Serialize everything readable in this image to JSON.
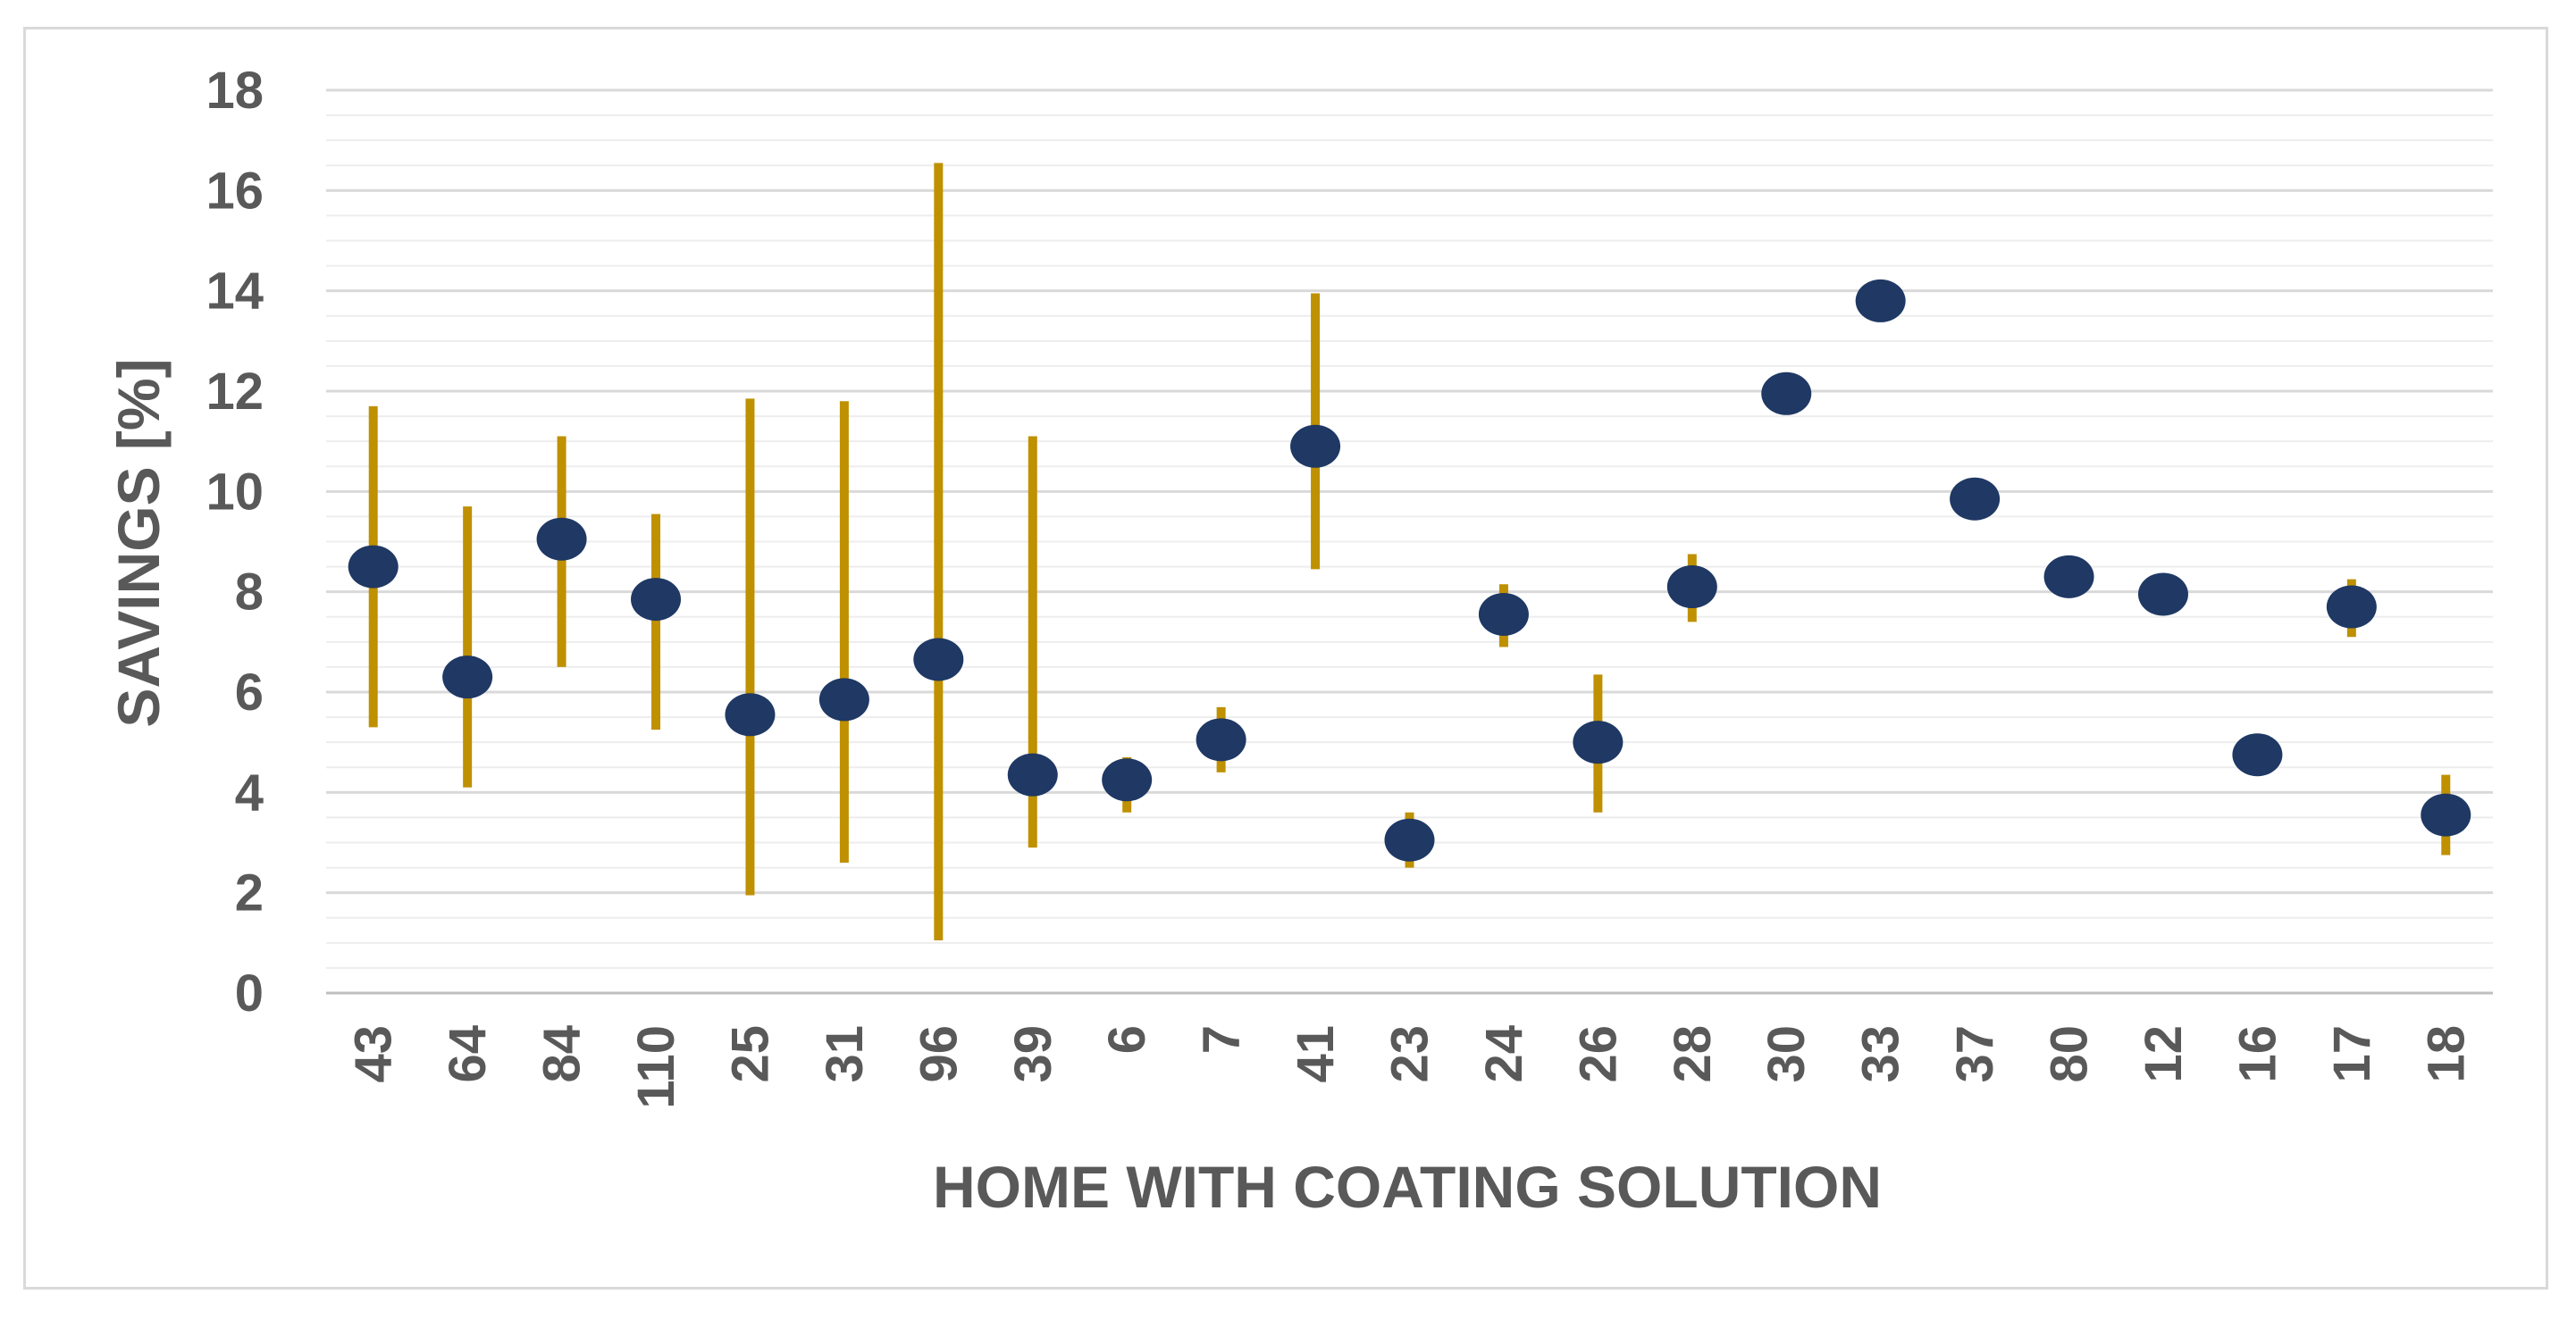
{
  "chart_data": {
    "type": "scatter",
    "title": "",
    "xlabel": "HOME WITH COATING SOLUTION",
    "ylabel": "SAVINGS [%]",
    "ylim": [
      0,
      18
    ],
    "y_ticks": [
      "0",
      "2",
      "4",
      "6",
      "8",
      "10",
      "12",
      "14",
      "16",
      "18"
    ],
    "major_grid_step": 2,
    "minor_grid_step": 0.5,
    "grid": true,
    "legend": "none",
    "categories": [
      "43",
      "64",
      "84",
      "110",
      "25",
      "31",
      "96",
      "39",
      "6",
      "7",
      "41",
      "23",
      "24",
      "26",
      "28",
      "30",
      "33",
      "37",
      "80",
      "12",
      "16",
      "17",
      "18"
    ],
    "values": [
      8.5,
      6.3,
      9.05,
      7.85,
      5.55,
      5.85,
      6.65,
      4.35,
      4.25,
      5.05,
      10.9,
      3.05,
      7.55,
      5.0,
      8.1,
      11.95,
      13.8,
      9.85,
      8.3,
      7.95,
      4.75,
      7.7,
      3.55
    ],
    "error_low": [
      5.3,
      4.1,
      6.5,
      5.25,
      1.95,
      2.6,
      1.05,
      2.9,
      3.6,
      4.4,
      8.45,
      2.5,
      6.9,
      3.6,
      7.4,
      null,
      null,
      null,
      null,
      null,
      null,
      7.1,
      2.75
    ],
    "error_high": [
      11.7,
      9.7,
      11.1,
      9.55,
      11.85,
      11.8,
      16.55,
      11.1,
      4.7,
      5.7,
      13.95,
      3.6,
      8.15,
      6.35,
      8.75,
      null,
      null,
      null,
      null,
      null,
      null,
      8.25,
      4.35
    ],
    "colors": {
      "marker": "#1f3864",
      "error_bar": "#bf9000",
      "major_grid": "#d9d9d9",
      "minor_grid": "#ededed",
      "axis": "#bfbfbf",
      "text": "#595959"
    }
  }
}
